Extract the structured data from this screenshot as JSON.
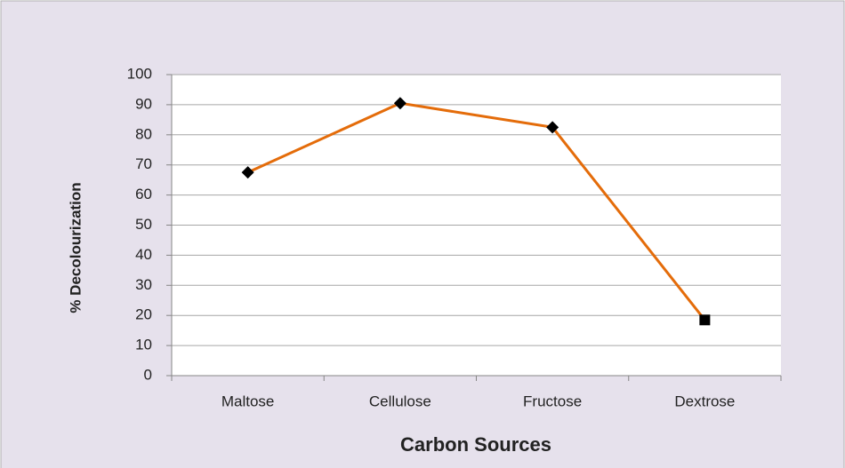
{
  "chart_data": {
    "type": "line",
    "x_label": "Carbon Sources",
    "y_label": "% Decolourization",
    "categories": [
      "Maltose",
      "Cellulose",
      "Fructose",
      "Dextrose"
    ],
    "values": [
      67.5,
      90.5,
      82.5,
      18.5
    ],
    "color": "#e46c0a",
    "marker_color": "#000000",
    "markers": [
      "diamond",
      "diamond",
      "diamond",
      "square"
    ],
    "ylim": [
      0,
      100
    ],
    "yticks": [
      0,
      10,
      20,
      30,
      40,
      50,
      60,
      70,
      80,
      90,
      100
    ],
    "grid": true
  }
}
